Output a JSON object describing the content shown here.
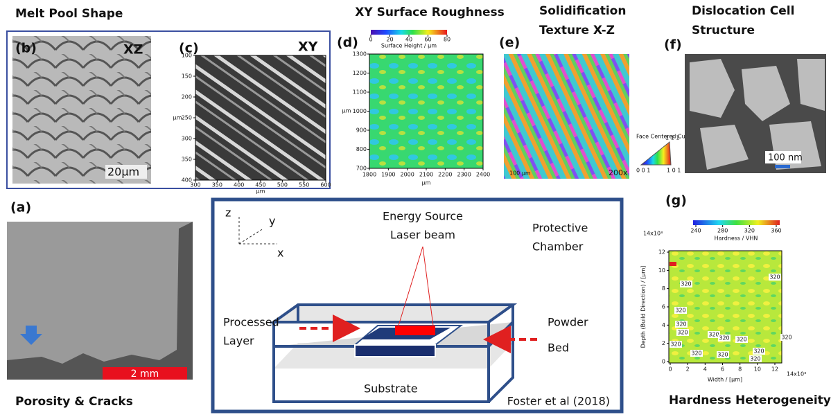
{
  "headings": {
    "melt_pool": "Melt Pool Shape",
    "roughness": "XY Surface Roughness",
    "texture": [
      "Solidification",
      "Texture X-Z"
    ],
    "dislocation": [
      "Dislocation Cell",
      "Structure"
    ],
    "porosity": "Porosity & Cracks",
    "hardness": "Hardness Heterogeneity"
  },
  "panel_a": {
    "label": "(a)",
    "scale_bar": "2 mm"
  },
  "panel_b": {
    "label": "(b)",
    "plane": "XZ",
    "scale_bar": "20μm"
  },
  "panel_c": {
    "label": "(c)",
    "plane": "XY",
    "xticks": [
      300,
      350,
      400,
      450,
      500,
      550,
      600
    ],
    "yticks": [
      100,
      150,
      200,
      250,
      300,
      350,
      400
    ],
    "xlabel": "μm",
    "ylabel": "μm"
  },
  "panel_d": {
    "label": "(d)",
    "colorbar_ticks": [
      0,
      20,
      40,
      60,
      80
    ],
    "colorbar_label": "Surface Height / μm",
    "xticks": [
      1800,
      1900,
      2000,
      2100,
      2200,
      2300,
      2400
    ],
    "yticks": [
      700,
      800,
      900,
      1000,
      1100,
      1200,
      1300
    ],
    "xlabel": "μm",
    "ylabel": "μm"
  },
  "panel_e": {
    "label": "(e)",
    "legend_title": "Face Centered Cubic",
    "corners": [
      "0 0 1",
      "1 0 1",
      "1 1 1"
    ],
    "magnification": "200x",
    "scale_bar": "100 μm"
  },
  "panel_f": {
    "label": "(f)",
    "scale_bar": "100 nm"
  },
  "panel_g": {
    "label": "(g)",
    "colorbar_ticks": [
      240,
      280,
      320,
      360
    ],
    "colorbar_label": "Hardness / VHN",
    "xticks": [
      0,
      2,
      4,
      6,
      8,
      10,
      12
    ],
    "yticks": [
      0,
      2,
      4,
      6,
      8,
      10,
      12
    ],
    "x_exponent": "14x10³",
    "y_exponent": "14x10³",
    "xlabel": "Width / [μm]",
    "ylabel": "Depth (Build Direction) / [μm]",
    "contour_labels": [
      "320",
      "320",
      "320",
      "320",
      "320",
      "320",
      "320",
      "320",
      "320",
      "320",
      "320",
      "320",
      "320",
      "320"
    ]
  },
  "schematic": {
    "axes": [
      "z",
      "y",
      "x"
    ],
    "energy_source": [
      "Energy Source",
      "Laser beam"
    ],
    "chamber": [
      "Protective",
      "Chamber"
    ],
    "processed_layer": [
      "Processed",
      "Layer"
    ],
    "powder_bed": [
      "Powder",
      "Bed"
    ],
    "substrate": "Substrate",
    "citation": "Foster et al (2018)"
  }
}
